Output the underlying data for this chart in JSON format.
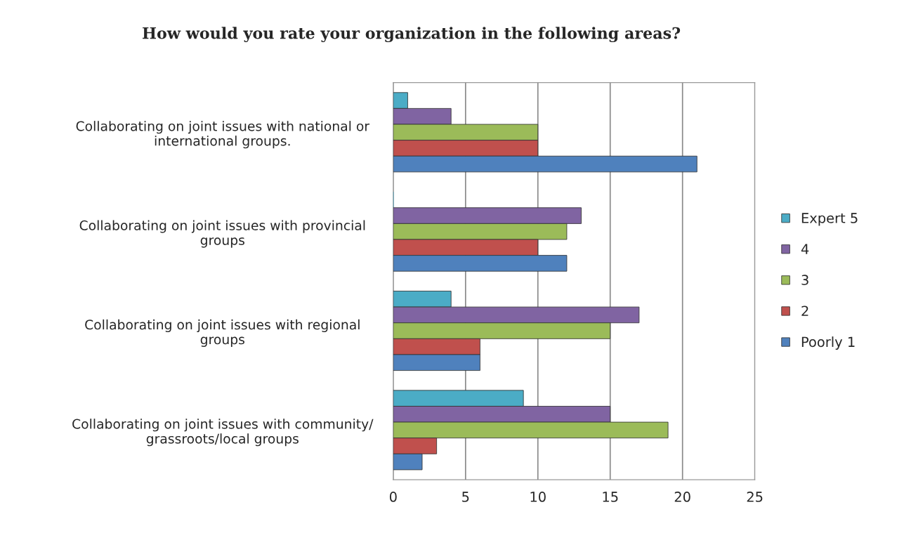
{
  "chart_data": {
    "type": "bar",
    "orientation": "horizontal",
    "title": "How would you rate your organization in the following areas?",
    "categories": [
      "Collaborating on joint issues with national or\ninternational groups.",
      "Collaborating on joint issues with provincial\ngroups",
      "Collaborating on joint issues with regional\ngroups",
      "Collaborating on joint issues with community/\ngrassroots/local groups"
    ],
    "series": [
      {
        "name": "Expert 5",
        "color": "#4bacc6",
        "values": [
          1,
          0,
          4,
          9
        ]
      },
      {
        "name": "4",
        "color": "#8064a2",
        "values": [
          4,
          13,
          17,
          15
        ]
      },
      {
        "name": "3",
        "color": "#9bbb59",
        "values": [
          10,
          12,
          15,
          19
        ]
      },
      {
        "name": "2",
        "color": "#c0504d",
        "values": [
          10,
          10,
          6,
          3
        ]
      },
      {
        "name": "Poorly 1",
        "color": "#4f81bd",
        "values": [
          21,
          12,
          6,
          2
        ]
      }
    ],
    "xlim": [
      0,
      25
    ],
    "xticks": [
      0,
      5,
      10,
      15,
      20,
      25
    ],
    "grid": "x",
    "legend": "right"
  }
}
